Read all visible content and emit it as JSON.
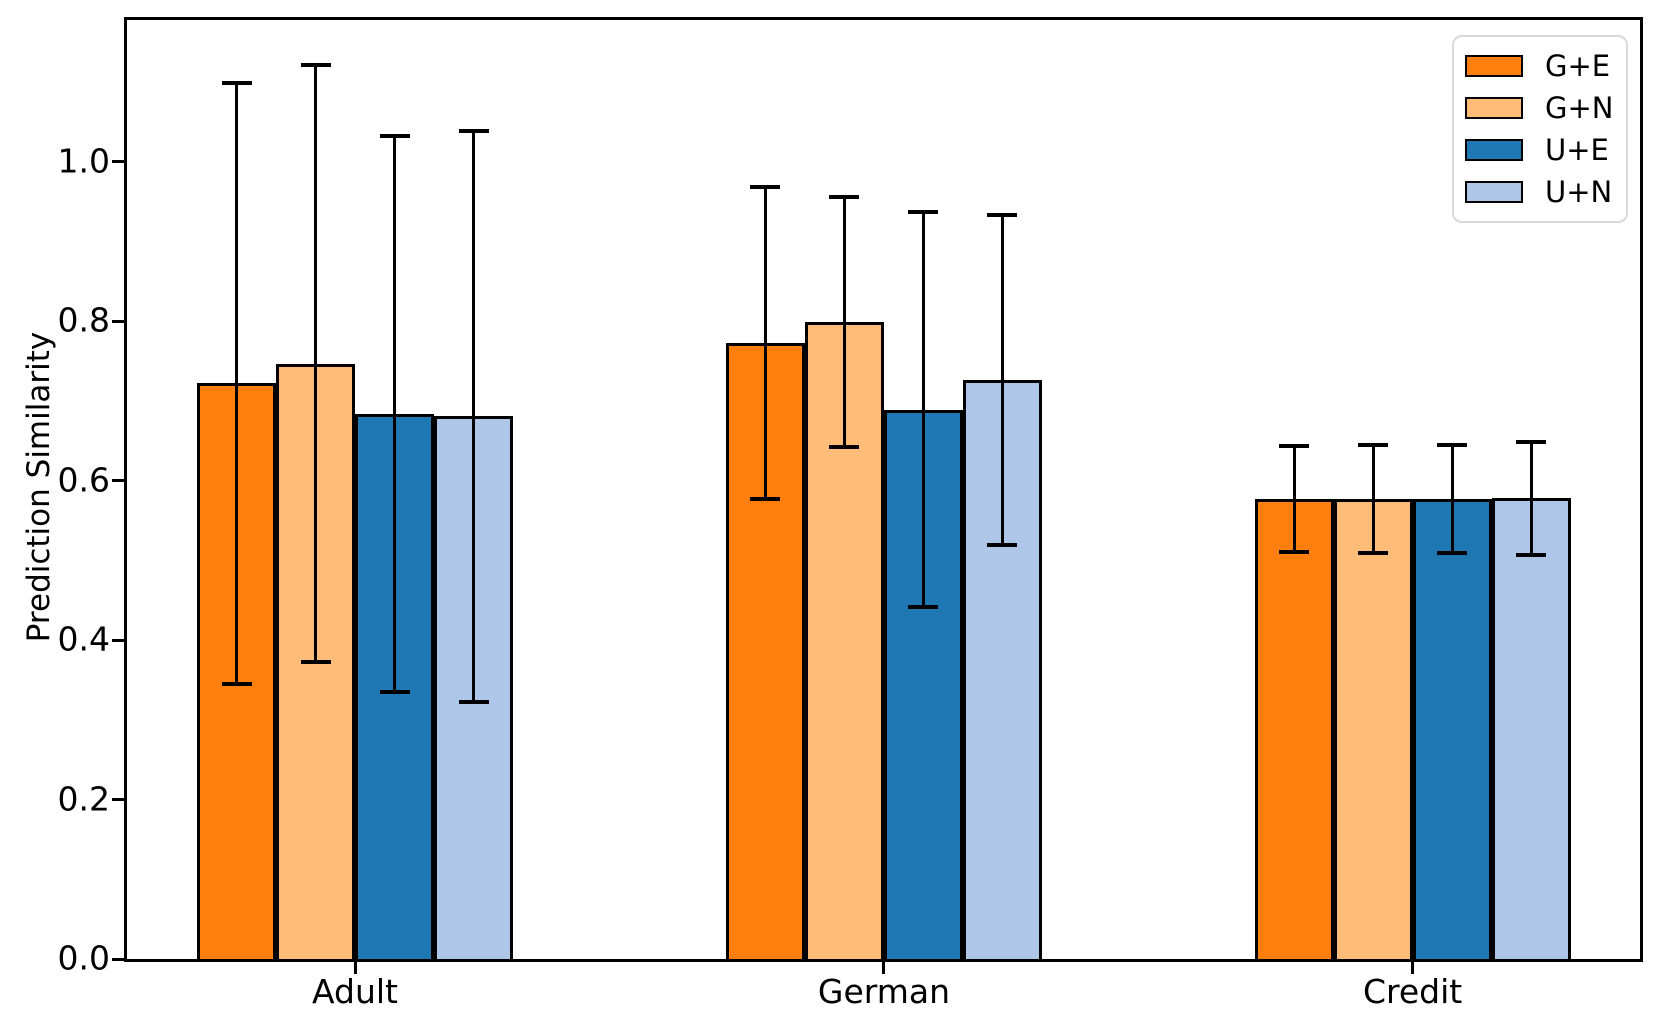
{
  "chart_data": {
    "type": "bar",
    "title": "",
    "xlabel": "",
    "ylabel": "Prediction Similarity",
    "categories": [
      "Adult",
      "German",
      "Credit"
    ],
    "series": [
      {
        "name": "G+E",
        "color": "#ff7f0e",
        "values": [
          0.722,
          0.773,
          0.577
        ],
        "errors": [
          0.377,
          0.196,
          0.066
        ]
      },
      {
        "name": "G+N",
        "color": "#ffbb78",
        "values": [
          0.747,
          0.799,
          0.577
        ],
        "errors": [
          0.375,
          0.157,
          0.068
        ]
      },
      {
        "name": "U+E",
        "color": "#1f77b4",
        "values": [
          0.684,
          0.689,
          0.577
        ],
        "errors": [
          0.349,
          0.248,
          0.068
        ]
      },
      {
        "name": "U+N",
        "color": "#aec7e8",
        "values": [
          0.681,
          0.726,
          0.578
        ],
        "errors": [
          0.358,
          0.207,
          0.071
        ]
      }
    ],
    "yticks": [
      0.0,
      0.2,
      0.4,
      0.6,
      0.8,
      1.0
    ],
    "ylim": [
      0,
      1.178
    ],
    "grid": false,
    "legend_position": "upper right",
    "error_bars": true,
    "bar_edge_color": "#000000",
    "spine_color": "#000000",
    "background_color": "#ffffff"
  }
}
